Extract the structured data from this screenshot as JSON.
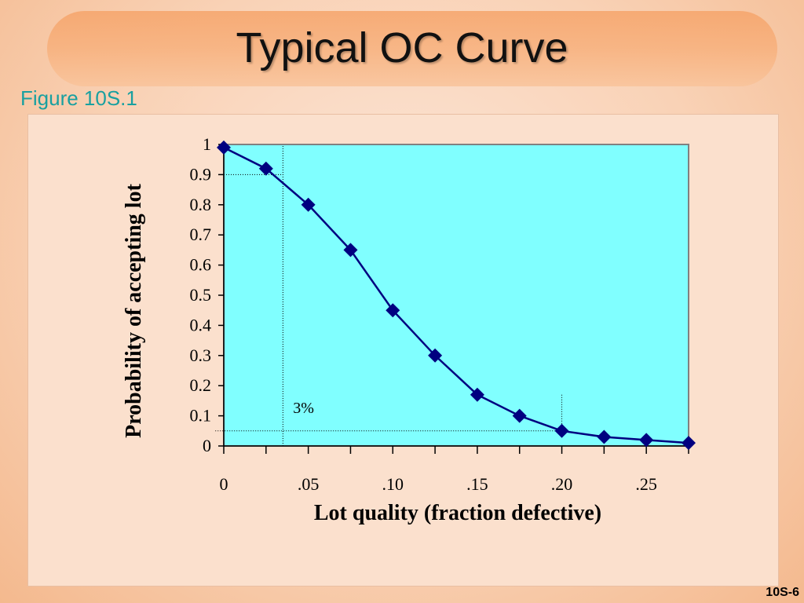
{
  "slide": {
    "title": "Typical OC Curve",
    "figure_label": "Figure 10S.1",
    "slide_number": "10S-6"
  },
  "colors": {
    "plot_background": "#80ffff",
    "line": "#000080",
    "marker": "#000080",
    "title_band": "#f7a96f",
    "figure_label": "#19a0a0"
  },
  "chart_data": {
    "type": "line",
    "title": "",
    "xlabel": "Lot quality (fraction defective)",
    "ylabel": "Probability of accepting lot",
    "xlim": [
      0,
      0.275
    ],
    "ylim": [
      0,
      1
    ],
    "x_ticks": [
      0,
      0.025,
      0.05,
      0.075,
      0.1,
      0.125,
      0.15,
      0.175,
      0.2,
      0.225,
      0.25,
      0.275
    ],
    "x_tick_labels": [
      {
        "value": 0,
        "label": "0"
      },
      {
        "value": 0.05,
        "label": ".05"
      },
      {
        "value": 0.1,
        "label": ".10"
      },
      {
        "value": 0.15,
        "label": ".15"
      },
      {
        "value": 0.2,
        "label": ".20"
      },
      {
        "value": 0.25,
        "label": ".25"
      }
    ],
    "y_ticks": [
      0,
      0.1,
      0.2,
      0.3,
      0.4,
      0.5,
      0.6,
      0.7,
      0.8,
      0.9,
      1
    ],
    "y_tick_labels": [
      "0",
      "0.1",
      "0.2",
      "0.3",
      "0.4",
      "0.5",
      "0.6",
      "0.7",
      "0.8",
      "0.9",
      "1"
    ],
    "grid": false,
    "series": [
      {
        "x": [
          0,
          0.025,
          0.05,
          0.075,
          0.1,
          0.125,
          0.15,
          0.175,
          0.2,
          0.225,
          0.25,
          0.275
        ],
        "y": [
          0.99,
          0.92,
          0.8,
          0.65,
          0.45,
          0.3,
          0.17,
          0.1,
          0.05,
          0.03,
          0.02,
          0.01
        ]
      }
    ],
    "reference_lines": [
      {
        "kind": "vertical",
        "x": 0.035,
        "from_y": 0,
        "to_y": 1
      },
      {
        "kind": "horizontal",
        "y": 0.9,
        "from_x": 0,
        "to_x": 0.035
      },
      {
        "kind": "horizontal",
        "y": 0.05,
        "from_x": -0.005,
        "to_x": 0.2
      },
      {
        "kind": "vertical",
        "x": 0.2,
        "from_y": 0.05,
        "to_y": 0.17
      }
    ],
    "annotations": [
      {
        "text": "3%",
        "x": 0.041,
        "y": 0.13
      }
    ]
  }
}
